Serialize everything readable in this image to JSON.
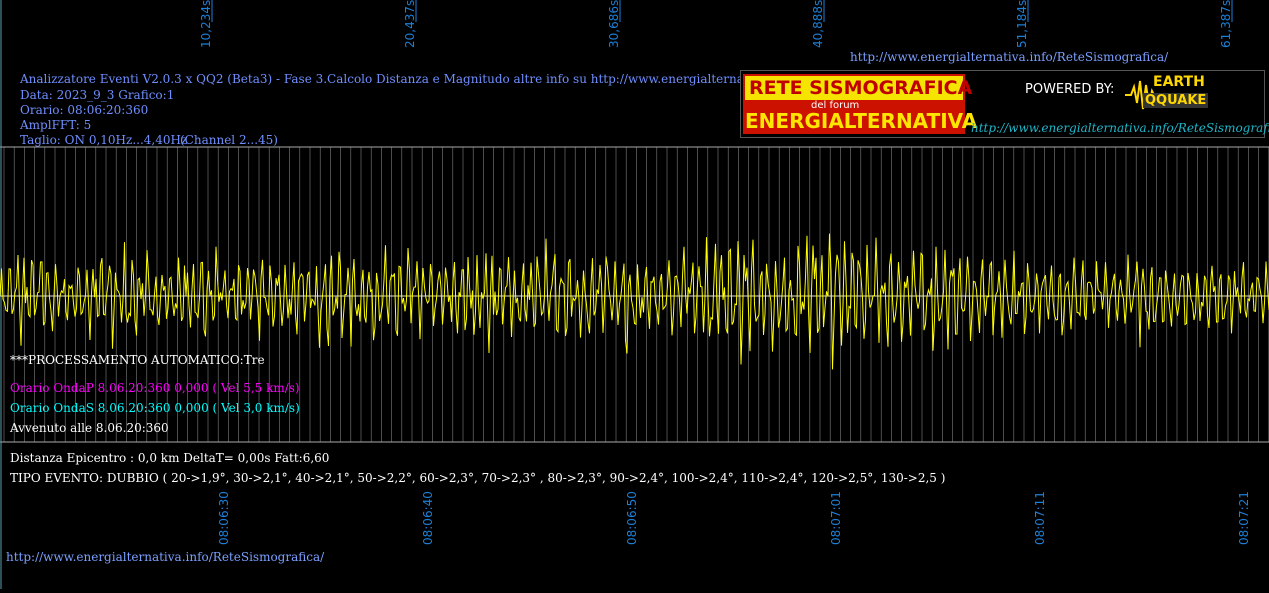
{
  "header": {
    "title_line": "Analizzatore Eventi V2.0.3 x QQ2 (Beta3) - Fase 3.Calcolo Distanza e Magnitudo altre info su http://www.energialternativa.info/ReteSism",
    "data": "Data: 2023_9_3 Grafico:1",
    "orario": "Orario: 08:06:20:360",
    "ampl": "AmplFFT: 5",
    "taglio": "Taglio: ON 0,10Hz...4,40Hz",
    "channel": "(Channel 2...45)"
  },
  "top_link": "http://www.energialternativa.info/ReteSismografica/",
  "bottom_link": "http://www.energialternativa.info/ReteSismografica/",
  "logo": {
    "line1": "RETE SISMOGRAFICA",
    "line2": "del forum",
    "line3": "ENERGIALTERNATIVA",
    "powered": "POWERED BY:",
    "brand1": "EARTH",
    "brand2": "QQUAKE",
    "url": "http://www.energialternativa.info/ReteSismografica"
  },
  "processing": {
    "auto": "***PROCESSAMENTO AUTOMATICO:Tre",
    "onda_p": "Orario OndaP 8.06.20:360  0,000 ( Vel 5,5 km/s)",
    "onda_s": "Orario OndaS 8.06.20:360  0,000 ( Vel 3,0 km/s)",
    "avvenuto": "Avvenuto alle 8.06.20:360",
    "distanza": "Distanza Epicentro : 0,0 km DeltaT= 0,00s  Fatt:6,60",
    "tipo_evento": "TIPO EVENTO: DUBBIO ( 20->1,9°, 30->2,1°, 40->2,1°, 50->2,2°, 60->2,3°, 70->2,3° , 80->2,3°, 90->2,4°, 100->2,4°, 110->2,4°, 120->2,5°, 130->2,5 )"
  },
  "colors": {
    "trace": "#ffff00",
    "grid": "#7f7f7f",
    "axis_text": "#1e7fd6",
    "header_text": "#6f8fff",
    "onda_p": "#ff00ff",
    "onda_s": "#00ffff"
  },
  "chart_data": {
    "type": "line",
    "title": "",
    "xlabel": "",
    "ylabel": "",
    "top_ticks": [
      "10,234s",
      "20,437s",
      "30,686s",
      "40,888s",
      "51,184s",
      "61,387s"
    ],
    "bottom_ticks": [
      "08:06:30",
      "08:06:40",
      "08:06:50",
      "08:07:01",
      "08:07:11",
      "08:07:21"
    ],
    "series": [
      {
        "envelope": [
          0.35,
          0.45,
          0.55,
          0.6,
          0.45,
          0.35,
          0.3,
          0.45,
          0.5,
          0.55,
          0.5,
          0.45,
          0.4,
          0.35,
          0.4,
          0.5,
          0.5,
          0.45,
          0.4,
          0.4,
          0.45,
          0.5,
          0.45,
          0.4,
          0.45,
          0.5,
          0.55,
          0.5,
          0.45,
          0.5,
          0.5,
          0.55,
          0.5,
          0.45,
          0.4,
          0.4,
          0.45,
          0.5,
          0.55,
          0.6,
          0.55,
          0.5,
          0.5,
          0.55,
          0.55,
          0.5,
          0.45,
          0.5,
          0.55,
          0.6,
          0.55,
          0.5,
          0.45,
          0.45,
          0.5,
          0.55,
          0.6,
          0.65,
          0.7,
          0.65,
          0.6,
          0.55,
          0.6,
          0.7,
          0.8,
          1.0,
          0.95,
          0.75,
          0.65,
          0.55,
          0.5,
          0.5,
          0.55,
          0.55,
          0.5,
          0.45,
          0.4,
          0.45,
          0.5,
          0.45,
          0.4,
          0.35,
          0.4,
          0.45,
          0.45,
          0.4,
          0.35,
          0.35,
          0.4,
          0.45,
          0.45,
          0.4,
          0.35,
          0.4,
          0.45,
          0.4,
          0.35,
          0.35,
          0.3,
          0.3
        ]
      }
    ]
  }
}
